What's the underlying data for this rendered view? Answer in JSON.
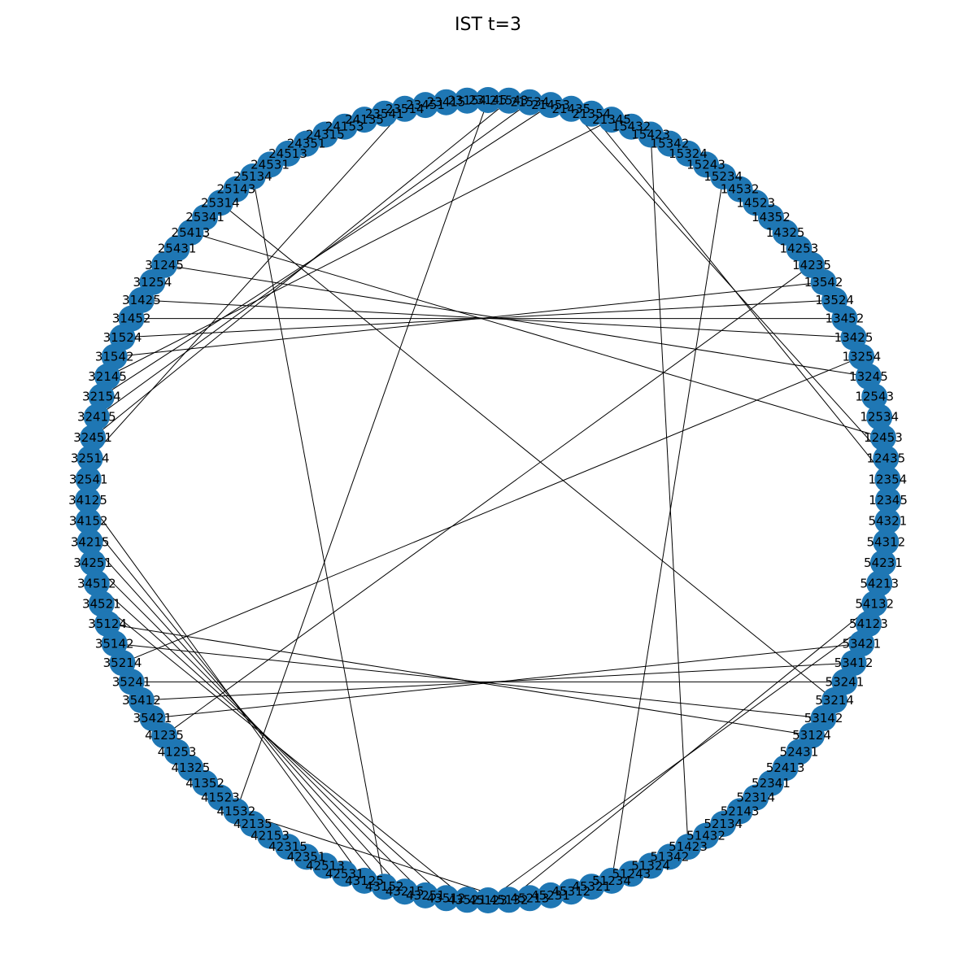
{
  "title": "IST t=3",
  "colors": {
    "node": "#1f77b4",
    "edge": "#000000",
    "label": "#000000"
  },
  "graph": {
    "nodes": [
      "12345",
      "12354",
      "12435",
      "12453",
      "12534",
      "12543",
      "13245",
      "13254",
      "13425",
      "13452",
      "13524",
      "13542",
      "14235",
      "14253",
      "14325",
      "14352",
      "14523",
      "14532",
      "15234",
      "15243",
      "15324",
      "15342",
      "15423",
      "15432",
      "21345",
      "21354",
      "21435",
      "21453",
      "21534",
      "21543",
      "23145",
      "23154",
      "23415",
      "23451",
      "23514",
      "23541",
      "24135",
      "24153",
      "24315",
      "24351",
      "24513",
      "24531",
      "25134",
      "25143",
      "25314",
      "25341",
      "25413",
      "25431",
      "31245",
      "31254",
      "31425",
      "31452",
      "31524",
      "31542",
      "32145",
      "32154",
      "32415",
      "32451",
      "32514",
      "32541",
      "34125",
      "34152",
      "34215",
      "34251",
      "34512",
      "34521",
      "35124",
      "35142",
      "35214",
      "35241",
      "35412",
      "35421",
      "41235",
      "41253",
      "41325",
      "41352",
      "41523",
      "41532",
      "42135",
      "42153",
      "42315",
      "42351",
      "42513",
      "42531",
      "43125",
      "43152",
      "43215",
      "43251",
      "43512",
      "43521",
      "45123",
      "45132",
      "45213",
      "45231",
      "45312",
      "45321",
      "51234",
      "51243",
      "51324",
      "51342",
      "51423",
      "51432",
      "52134",
      "52143",
      "52314",
      "52341",
      "52413",
      "52431",
      "53124",
      "53142",
      "53214",
      "53241",
      "53412",
      "53421",
      "54123",
      "54132",
      "54213",
      "54231",
      "54312",
      "54321"
    ],
    "edges": [
      [
        "12354",
        "21354"
      ],
      [
        "12435",
        "21435"
      ],
      [
        "12453",
        "25413"
      ],
      [
        "13245",
        "31245"
      ],
      [
        "13254",
        "35214"
      ],
      [
        "13425",
        "31425"
      ],
      [
        "13452",
        "31452"
      ],
      [
        "13524",
        "31524"
      ],
      [
        "13542",
        "31542"
      ],
      [
        "14235",
        "41235"
      ],
      [
        "15234",
        "51234"
      ],
      [
        "15423",
        "51423"
      ],
      [
        "21345",
        "32145"
      ],
      [
        "21453",
        "32154"
      ],
      [
        "21534",
        "32415"
      ],
      [
        "21543",
        "32451"
      ],
      [
        "23145",
        "41532"
      ],
      [
        "23514",
        "32514"
      ],
      [
        "25134",
        "43152"
      ],
      [
        "53124",
        "35124"
      ],
      [
        "53142",
        "35142"
      ],
      [
        "53214",
        "25314"
      ],
      [
        "53241",
        "35241"
      ],
      [
        "53412",
        "35412"
      ],
      [
        "53421",
        "35421"
      ],
      [
        "54123",
        "45123"
      ],
      [
        "54132",
        "45132"
      ],
      [
        "34125",
        "43125"
      ],
      [
        "34152",
        "43152"
      ],
      [
        "34215",
        "43215"
      ],
      [
        "34251",
        "43251"
      ],
      [
        "34512",
        "43512"
      ],
      [
        "34521",
        "43521"
      ],
      [
        "41532",
        "45132"
      ]
    ]
  }
}
